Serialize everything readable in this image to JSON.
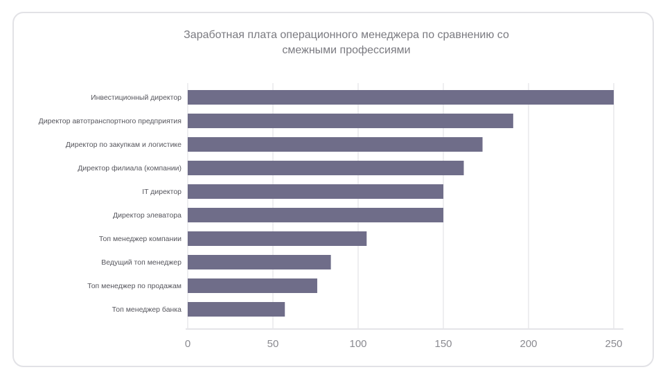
{
  "chart_data": {
    "type": "bar",
    "orientation": "horizontal",
    "title": "Заработная плата операционного менеджера по сравнению со смежными профессиями",
    "categories": [
      "Инвестиционный директор",
      "Директор автотранспортного предприятия",
      "Директор по закупкам и логистике",
      "Директор филиала (компании)",
      "IT директор",
      "Директор элеватора",
      "Топ менеджер компании",
      "Ведущий топ менеджер",
      "Топ менеджер по продажам",
      "Топ менеджер банка"
    ],
    "values": [
      250,
      191,
      173,
      162,
      150,
      150,
      105,
      84,
      76,
      57
    ],
    "xlim": [
      0,
      250
    ],
    "xticks": [
      0,
      50,
      100,
      150,
      200,
      250
    ],
    "xlabel": "",
    "ylabel": "",
    "grid": true,
    "bar_color": "#6f6d89"
  }
}
